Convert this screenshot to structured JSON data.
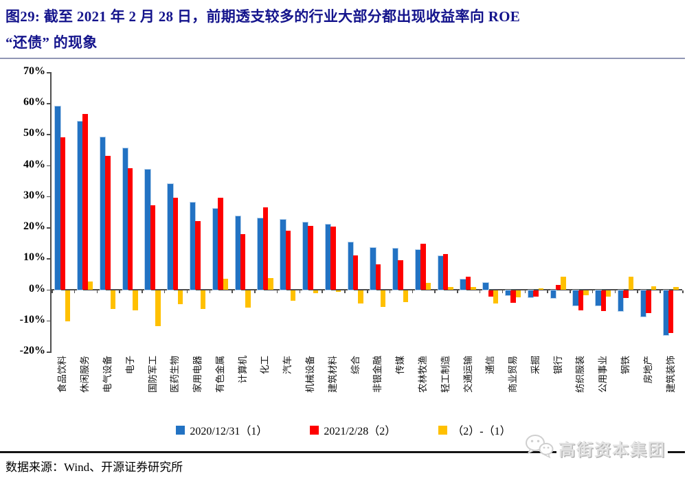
{
  "title": {
    "line1": "图29: 截至 2021 年 2 月 28 日，前期透支较多的行业大部分都出现收益率向 ROE",
    "line2": "“还债” 的现象"
  },
  "chart_data": {
    "type": "bar",
    "title": "截至2021年2月28日，前期透支较多的行业大部分都出现收益率向ROE还债的现象",
    "categories": [
      "食品饮料",
      "休闲服务",
      "电气设备",
      "电子",
      "国防军工",
      "医药生物",
      "家用电器",
      "有色金属",
      "计算机",
      "化工",
      "汽车",
      "机械设备",
      "建筑材料",
      "综合",
      "非银金融",
      "传媒",
      "农林牧渔",
      "轻工制造",
      "交通运输",
      "通信",
      "商业贸易",
      "采掘",
      "银行",
      "纺织服装",
      "公用事业",
      "钢铁",
      "房地产",
      "建筑装饰"
    ],
    "series": [
      {
        "name": "2020/12/31（1）",
        "color": "#2272C3",
        "values": [
          59,
          54,
          49,
          45.5,
          38.5,
          34,
          28,
          26,
          23.5,
          22.8,
          22.5,
          21.5,
          20.8,
          15.2,
          13.4,
          13.2,
          12.7,
          10.8,
          3.2,
          2.2,
          -1.6,
          -2.4,
          -2.5,
          -4.9,
          -4.9,
          -6.8,
          -8.5,
          -14.5
        ]
      },
      {
        "name": "2021/2/28（2）",
        "color": "#FE0000",
        "values": [
          49,
          56.5,
          43,
          39,
          27,
          29.5,
          22,
          29.5,
          17.8,
          26.5,
          19,
          20.5,
          20.3,
          11,
          8,
          9.3,
          14.8,
          11.5,
          4,
          -2.2,
          -4,
          -2,
          1.5,
          -6.6,
          -6.8,
          -2.5,
          -7.5,
          -13.8
        ]
      },
      {
        "name": "（2）-（1）",
        "color": "#FFC000",
        "values": [
          -10,
          2.5,
          -6,
          -6.5,
          -11.5,
          -4.5,
          -6,
          3.5,
          -5.7,
          3.7,
          -3.5,
          -1,
          -0.5,
          -4.2,
          -5.4,
          -3.9,
          2.1,
          0.7,
          0.8,
          -4.4,
          -2.4,
          0.4,
          4.1,
          -1.7,
          -2,
          4.2,
          1,
          0.7
        ]
      }
    ],
    "xlabel": "",
    "ylabel": "",
    "ylim": [
      -20,
      70
    ],
    "yticks": [
      70,
      60,
      50,
      40,
      30,
      20,
      10,
      0,
      -10,
      -20
    ],
    "ytick_suffix": "%",
    "grid": false,
    "legend_position": "bottom"
  },
  "footer": {
    "source": "数据来源：Wind、开源证券研究所"
  },
  "watermark": {
    "text": "高街资本集团"
  },
  "colors": {
    "title_navy": "#14148C",
    "axis_gray": "#4d4d4d",
    "bar_blue": "#2272C3",
    "bar_red": "#FE0000",
    "bar_yellow": "#FFC000"
  }
}
